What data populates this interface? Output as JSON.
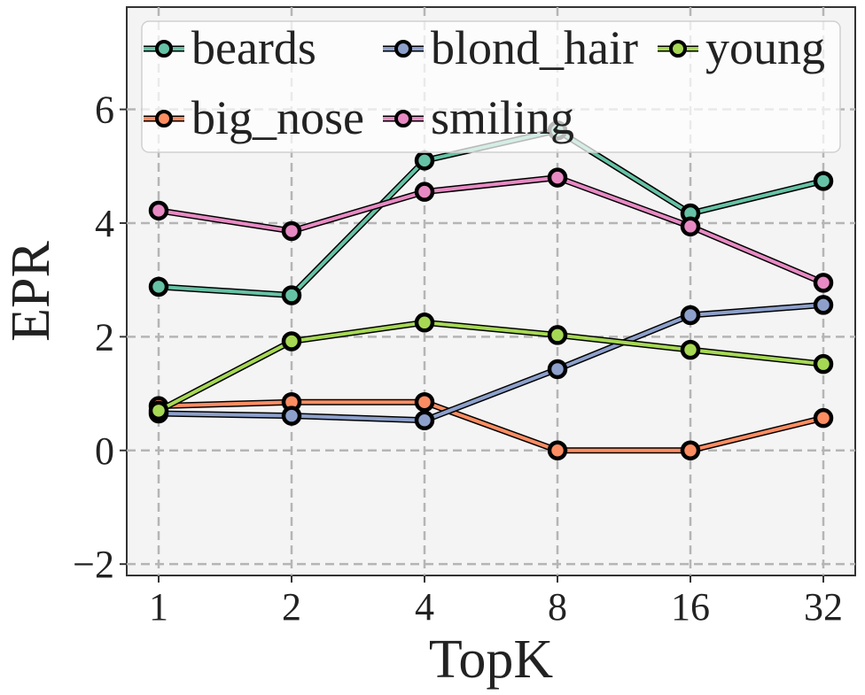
{
  "chart_data": {
    "type": "line",
    "xlabel": "TopK",
    "ylabel": "EPR",
    "x": [
      1,
      2,
      4,
      8,
      16,
      32
    ],
    "x_scale": "log2",
    "ylim": [
      -2.2,
      7.8
    ],
    "yticks": [
      -2,
      0,
      2,
      4,
      6
    ],
    "grid": true,
    "legend": "top",
    "series": [
      {
        "name": "beards",
        "color": "#66c2a5",
        "values": [
          2.88,
          2.73,
          5.1,
          5.63,
          4.17,
          4.74
        ]
      },
      {
        "name": "big_nose",
        "color": "#fc8d62",
        "values": [
          0.78,
          0.85,
          0.85,
          0.0,
          0.0,
          0.57
        ]
      },
      {
        "name": "blond_hair",
        "color": "#8da0cb",
        "values": [
          0.65,
          0.61,
          0.53,
          1.43,
          2.38,
          2.56
        ]
      },
      {
        "name": "smiling",
        "color": "#e78ac3",
        "values": [
          4.22,
          3.86,
          4.55,
          4.8,
          3.94,
          2.95
        ]
      },
      {
        "name": "young",
        "color": "#a6d854",
        "values": [
          0.7,
          1.92,
          2.25,
          2.03,
          1.77,
          1.52
        ]
      }
    ],
    "tick_minus": "−"
  }
}
